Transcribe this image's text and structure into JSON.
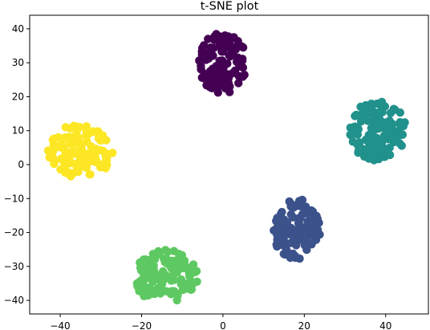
{
  "chart_data": {
    "type": "scatter",
    "title": "t-SNE plot",
    "xlabel": "",
    "ylabel": "",
    "xlim": [
      -47.5,
      50.5
    ],
    "ylim": [
      -44,
      44
    ],
    "x_ticks": [
      -40,
      -20,
      0,
      20,
      40
    ],
    "y_ticks": [
      -40,
      -30,
      -20,
      -10,
      0,
      10,
      20,
      30,
      40
    ],
    "x_tick_labels": [
      "−40",
      "−20",
      "0",
      "20",
      "40"
    ],
    "y_tick_labels": [
      "−40",
      "−30",
      "−20",
      "−10",
      "0",
      "10",
      "20",
      "30",
      "40"
    ],
    "grid": false,
    "legend": "none",
    "clusters": [
      {
        "color": "#440154",
        "center": [
          0,
          30
        ],
        "spread": [
          6,
          9
        ],
        "points": 120
      },
      {
        "color": "#21918c",
        "center": [
          38,
          10
        ],
        "spread": [
          7,
          9
        ],
        "points": 120
      },
      {
        "color": "#fde725",
        "center": [
          -35,
          4
        ],
        "spread": [
          8,
          8
        ],
        "points": 120
      },
      {
        "color": "#3b528b",
        "center": [
          18,
          -19
        ],
        "spread": [
          6,
          9
        ],
        "points": 120
      },
      {
        "color": "#5ec962",
        "center": [
          -14,
          -33
        ],
        "spread": [
          8,
          8
        ],
        "points": 120
      }
    ]
  }
}
